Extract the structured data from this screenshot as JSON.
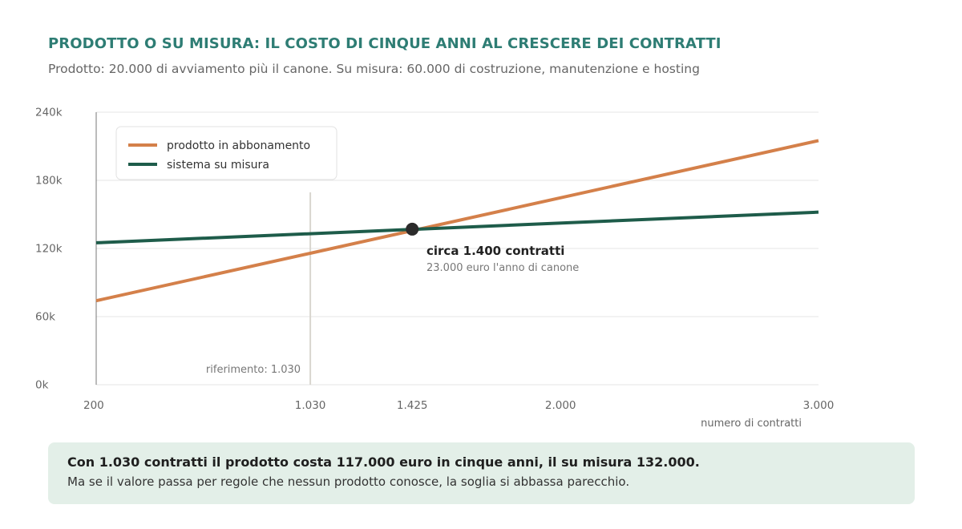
{
  "header": {
    "title": "PRODOTTO O SU MISURA: IL COSTO DI CINQUE ANNI AL CRESCERE DEI CONTRATTI",
    "subtitle": "Prodotto: 20.000 di avviamento più il canone. Su misura: 60.000 di costruzione, manutenzione e hosting"
  },
  "chart_data": {
    "type": "line",
    "xlabel": "numero di contratti",
    "ylabel": "",
    "xlim": [
      200,
      3000
    ],
    "ylim": [
      0,
      240000
    ],
    "x_ticks": [
      {
        "value": 200,
        "label": "200"
      },
      {
        "value": 1030,
        "label": "1.030"
      },
      {
        "value": 1425,
        "label": "1.425"
      },
      {
        "value": 2000,
        "label": "2.000"
      },
      {
        "value": 3000,
        "label": "3.000"
      }
    ],
    "y_ticks": [
      {
        "value": 0,
        "label": "0k"
      },
      {
        "value": 60000,
        "label": "60k"
      },
      {
        "value": 120000,
        "label": "120k"
      },
      {
        "value": 180000,
        "label": "180k"
      },
      {
        "value": 240000,
        "label": "240k"
      }
    ],
    "grid": true,
    "legend_position": "top-left",
    "series": [
      {
        "name": "prodotto in abbonamento",
        "color": "#d4804a",
        "x": [
          200,
          3000
        ],
        "y": [
          74000,
          215000
        ]
      },
      {
        "name": "sistema su misura",
        "color": "#1e5c4a",
        "x": [
          200,
          3000
        ],
        "y": [
          125000,
          152000
        ]
      }
    ],
    "reference_line": {
      "x": 1030,
      "label": "riferimento: 1.030",
      "color": "#d9d6cf"
    },
    "intersection": {
      "x": 1425,
      "y": 137000,
      "color": "#2b2b2b",
      "label": "circa 1.400 contratti",
      "sublabel": "23.000 euro l'anno di canone"
    }
  },
  "callout": {
    "strong": "Con 1.030 contratti il prodotto costa 117.000 euro in cinque anni, il su misura 132.000.",
    "text": "Ma se il valore passa per regole che nessun prodotto conosce, la soglia si abbassa parecchio."
  }
}
